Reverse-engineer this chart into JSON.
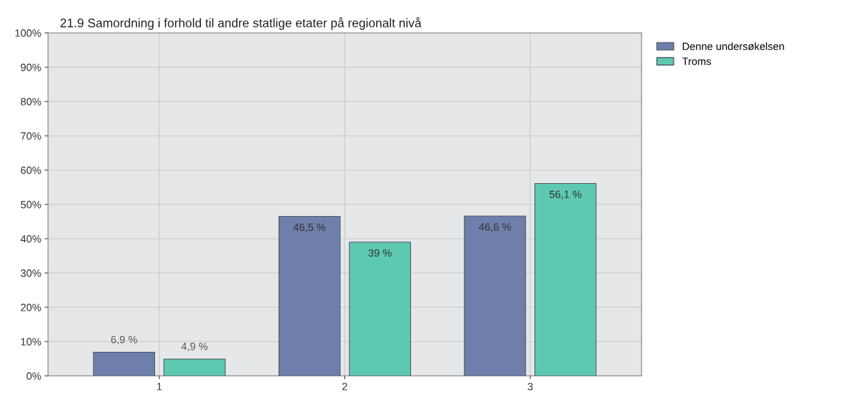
{
  "chart_data": {
    "type": "bar",
    "title": "21.9 Samordning i forhold til andre statlige etater på regionalt nivå",
    "categories": [
      "1",
      "2",
      "3"
    ],
    "series": [
      {
        "name": "Denne undersøkelsen",
        "color": "#6e7fab",
        "values": [
          6.9,
          46.5,
          46.6
        ],
        "value_labels": [
          "6,9 %",
          "46,5 %",
          "46,6 %"
        ]
      },
      {
        "name": "Troms",
        "color": "#5ec9b1",
        "values": [
          4.9,
          39,
          56.1
        ],
        "value_labels": [
          "4,9 %",
          "39 %",
          "56,1 %"
        ]
      }
    ],
    "ylim": [
      0,
      100
    ],
    "yticks": [
      {
        "value": 0,
        "label": "0%"
      },
      {
        "value": 10,
        "label": "10%"
      },
      {
        "value": 20,
        "label": "20%"
      },
      {
        "value": 30,
        "label": "30%"
      },
      {
        "value": 40,
        "label": "40%"
      },
      {
        "value": 50,
        "label": "50%"
      },
      {
        "value": 60,
        "label": "60%"
      },
      {
        "value": 70,
        "label": "70%"
      },
      {
        "value": 80,
        "label": "80%"
      },
      {
        "value": 90,
        "label": "90%"
      },
      {
        "value": 100,
        "label": "100%"
      }
    ],
    "grid": true,
    "legend": "top right"
  }
}
